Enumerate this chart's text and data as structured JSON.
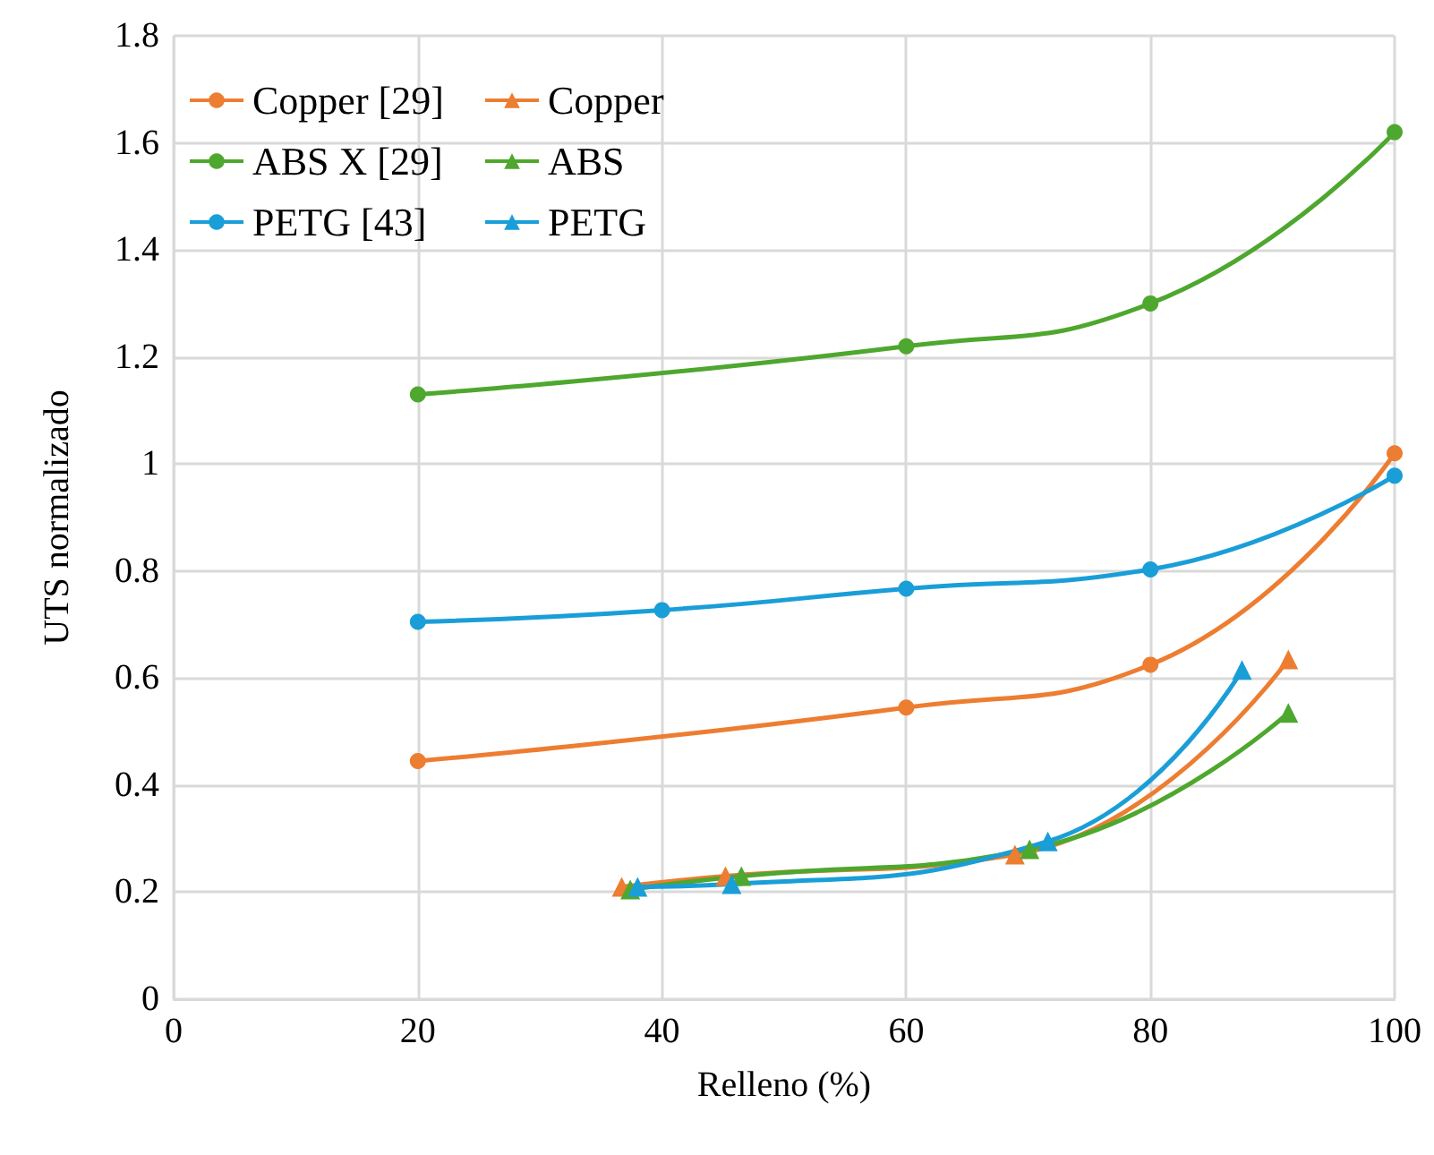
{
  "chart_data": {
    "type": "line",
    "xlabel": "Relleno (%)",
    "ylabel": "UTS normalizado",
    "xlim": [
      0,
      100
    ],
    "xticks": [
      0,
      20,
      40,
      60,
      80,
      100
    ],
    "ylim": [
      0,
      1.8
    ],
    "yticks": [
      0,
      0.2,
      0.4,
      0.6,
      0.8,
      1,
      1.2,
      1.4,
      1.6,
      1.8
    ],
    "grid": true,
    "legend": "top left",
    "series": [
      {
        "name": "Copper [29]",
        "color": "#ed7d31",
        "marker": "circle",
        "x": [
          20,
          60,
          80,
          100
        ],
        "values": [
          0.445,
          0.545,
          0.625,
          1.02
        ]
      },
      {
        "name": "Copper",
        "color": "#ed7d31",
        "marker": "triangle",
        "x": [
          36.7,
          45.2,
          68.9,
          91.3
        ],
        "values": [
          0.21,
          0.23,
          0.27,
          0.635
        ]
      },
      {
        "name": "ABS X [29]",
        "color": "#4ea72e",
        "marker": "circle",
        "x": [
          20,
          60,
          80,
          100
        ],
        "values": [
          1.13,
          1.22,
          1.3,
          1.62
        ]
      },
      {
        "name": "ABS",
        "color": "#4ea72e",
        "marker": "triangle",
        "x": [
          37.4,
          46.5,
          70.1,
          91.3
        ],
        "values": [
          0.205,
          0.23,
          0.28,
          0.535
        ]
      },
      {
        "name": "PETG [43]",
        "color": "#1a9ed8",
        "marker": "circle",
        "x": [
          20,
          40,
          60,
          80,
          100
        ],
        "values": [
          0.705,
          0.727,
          0.767,
          0.803,
          0.978
        ]
      },
      {
        "name": "PETG",
        "color": "#1a9ed8",
        "marker": "triangle",
        "x": [
          38,
          45.7,
          71.6,
          87.5
        ],
        "values": [
          0.21,
          0.215,
          0.295,
          0.615
        ]
      }
    ]
  }
}
